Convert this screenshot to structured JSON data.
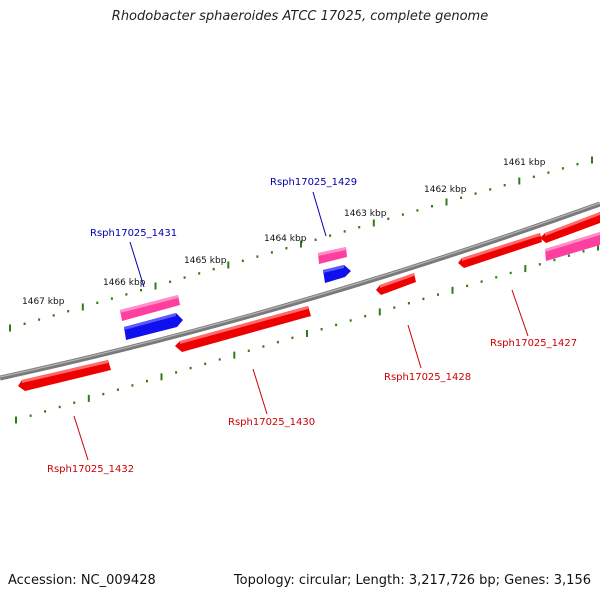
{
  "title": "Rhodobacter sphaeroides ATCC 17025, complete genome",
  "footer": {
    "accession": "Accession: NC_009428",
    "topology": "Topology: circular; Length: 3,217,726 bp; Genes: 3,156"
  },
  "colors": {
    "backbone": "#7a7a7a",
    "tick": "#2e7d12",
    "gene_red": "#ee0000",
    "gene_pink": "#ff3fa0",
    "gene_blue": "#1010ee",
    "label_red": "#cc0000",
    "label_blue": "#0000aa"
  },
  "kbp_ticks": [
    "1461 kbp",
    "1462 kbp",
    "1463 kbp",
    "1464 kbp",
    "1465 kbp",
    "1466 kbp",
    "1467 kbp"
  ],
  "gene_labels": [
    {
      "name": "Rsph17025_1427",
      "color": "red"
    },
    {
      "name": "Rsph17025_1428",
      "color": "red"
    },
    {
      "name": "Rsph17025_1429",
      "color": "blue"
    },
    {
      "name": "Rsph17025_1430",
      "color": "red"
    },
    {
      "name": "Rsph17025_1431",
      "color": "blue"
    },
    {
      "name": "Rsph17025_1432",
      "color": "red"
    }
  ]
}
